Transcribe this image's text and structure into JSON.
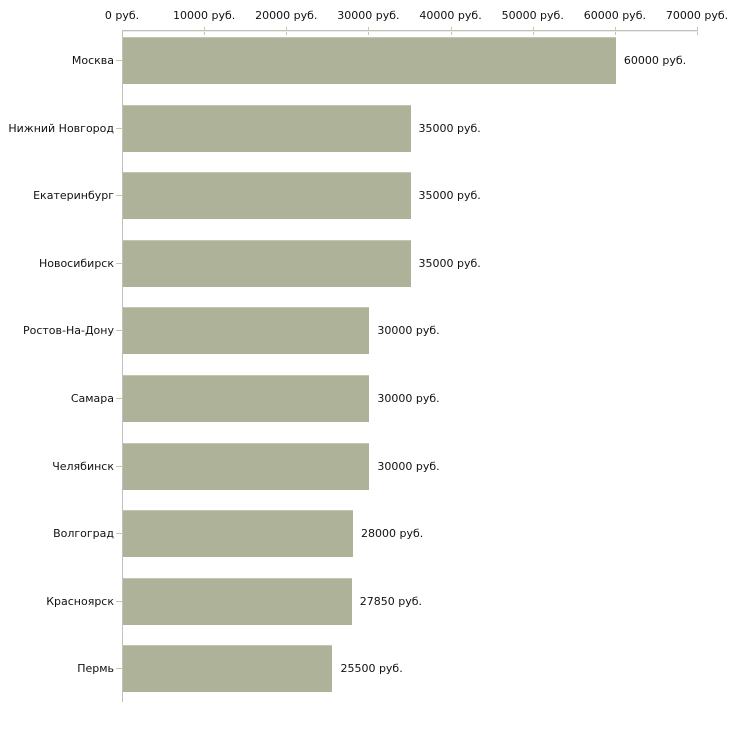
{
  "chart_data": {
    "type": "bar",
    "orientation": "horizontal",
    "title": "",
    "xlabel": "",
    "ylabel": "",
    "xlim": [
      0,
      70000
    ],
    "grid": false,
    "legend": false,
    "unit_suffix": " руб.",
    "categories": [
      "Москва",
      "Нижний Новгород",
      "Екатеринбург",
      "Новосибирск",
      "Ростов-На-Дону",
      "Самара",
      "Челябинск",
      "Волгоград",
      "Красноярск",
      "Пермь"
    ],
    "values": [
      60000,
      35000,
      35000,
      35000,
      30000,
      30000,
      30000,
      28000,
      27850,
      25500
    ],
    "value_labels": [
      "60000 руб.",
      "35000 руб.",
      "35000 руб.",
      "35000 руб.",
      "30000 руб.",
      "30000 руб.",
      "30000 руб.",
      "28000 руб.",
      "27850 руб.",
      "25500 руб."
    ],
    "x_tick_values": [
      0,
      10000,
      20000,
      30000,
      40000,
      50000,
      60000,
      70000
    ],
    "x_tick_labels": [
      "0 руб.",
      "10000 руб.",
      "20000 руб.",
      "30000 руб.",
      "40000 руб.",
      "50000 руб.",
      "60000 руб.",
      "70000 руб."
    ],
    "colors": {
      "bar": "#adb298",
      "bar_top_edge": "#c3c7b2",
      "axis_line": "#c0c0c0",
      "axis_line_light": "#ebebe3",
      "tick": "#c9c99a",
      "text": "#111111",
      "background": "#ffffff"
    }
  }
}
